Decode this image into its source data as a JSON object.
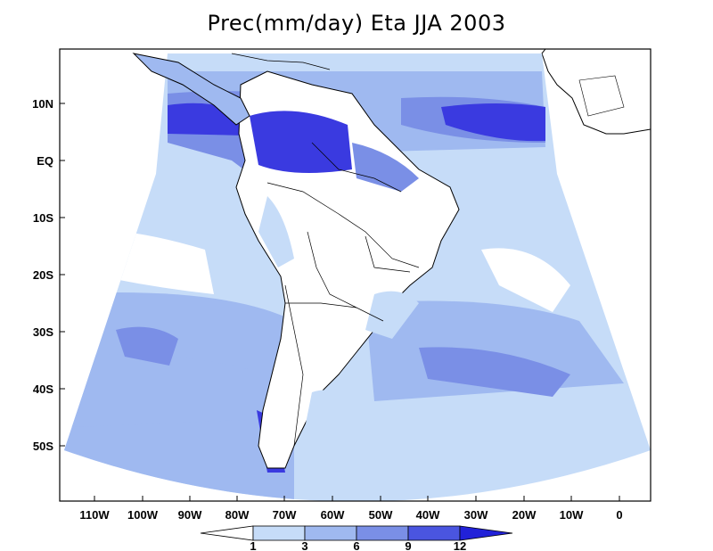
{
  "title": "Prec(mm/day) Eta JJA 2003",
  "y_axis": {
    "labels": [
      "10N",
      "EQ",
      "10S",
      "20S",
      "30S",
      "40S",
      "50S"
    ]
  },
  "x_axis": {
    "labels": [
      "110W",
      "100W",
      "90W",
      "80W",
      "70W",
      "60W",
      "50W",
      "40W",
      "30W",
      "20W",
      "10W",
      "0"
    ]
  },
  "colorbar": {
    "labels": [
      "1",
      "3",
      "6",
      "9",
      "12"
    ],
    "colors": [
      "#ffffff",
      "#c6dcf8",
      "#9fb9f0",
      "#7a8fe6",
      "#4a55e0",
      "#2121d8"
    ]
  },
  "colors": {
    "land": "#ffffff",
    "light": "#c6dcf8",
    "medium": "#9fb9f0",
    "strong": "#7a8fe6",
    "heavy": "#3a3ae0",
    "coast": "#000000"
  }
}
